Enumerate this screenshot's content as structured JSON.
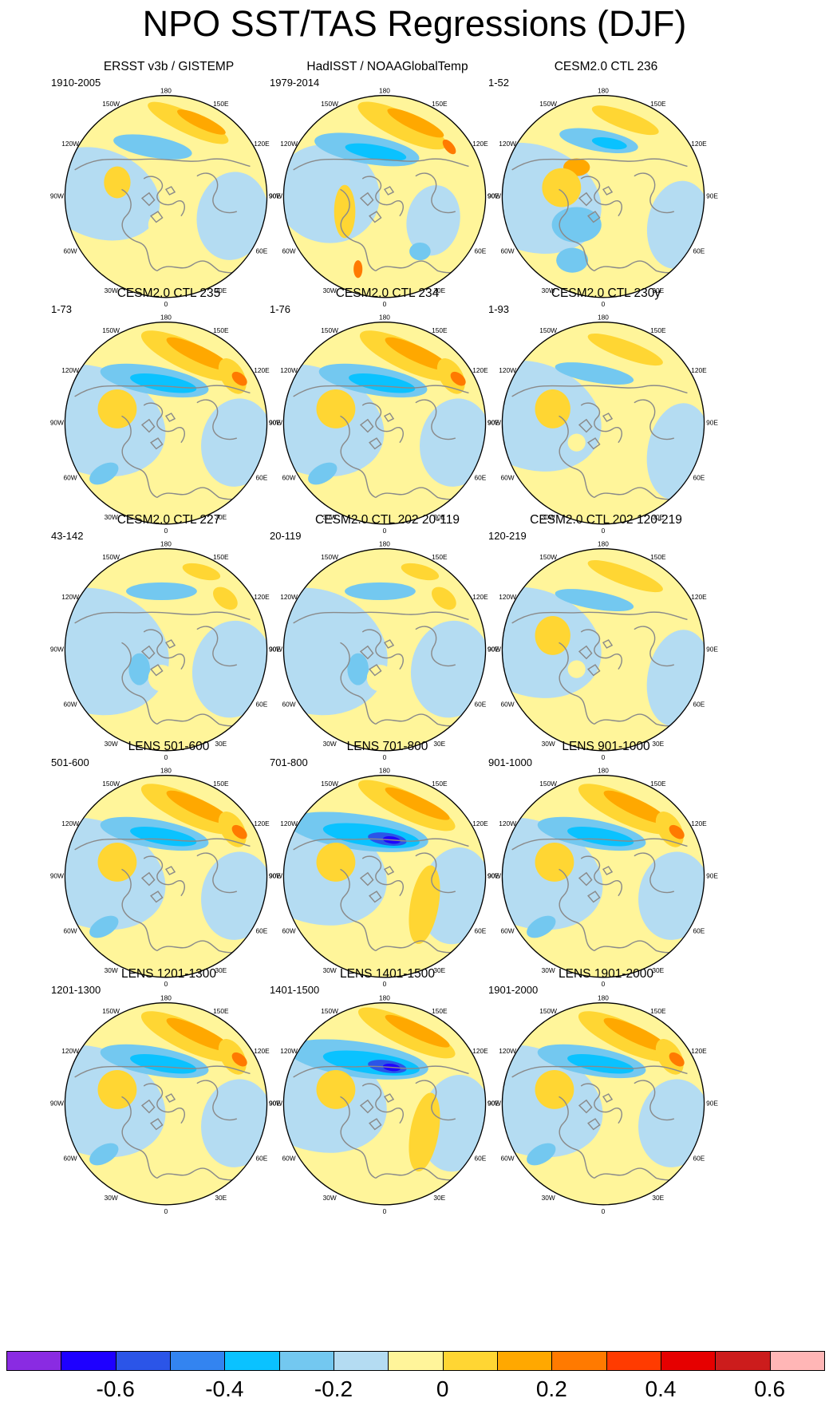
{
  "figure_title": "NPO SST/TAS Regressions (DJF)",
  "map_labels": {
    "lon_180": "180",
    "lon_150e": "150E",
    "lon_120e": "120E",
    "lon_90e": "90E",
    "lon_60e": "60E",
    "lon_30e": "30E",
    "lon_0": "0",
    "lon_30w": "30W",
    "lon_60w": "60W",
    "lon_90w": "90W",
    "lon_120w": "120W",
    "lon_150w": "150W"
  },
  "panels": [
    {
      "title": "ERSST v3b / GISTEMP",
      "years": "1910-2005",
      "pattern": "obs1"
    },
    {
      "title": "HadISST / NOAAGlobalTemp",
      "years": "1979-2014",
      "pattern": "obs2"
    },
    {
      "title": "CESM2.0 CTL 236",
      "years": "1-52",
      "pattern": "ctl"
    },
    {
      "title": "CESM2.0 CTL 235",
      "years": "1-73",
      "pattern": "strong"
    },
    {
      "title": "CESM2.0 CTL 234",
      "years": "1-76",
      "pattern": "strong"
    },
    {
      "title": "CESM2.0 CTL 230y",
      "years": "1-93",
      "pattern": "mild"
    },
    {
      "title": "CESM2.0 CTL 227",
      "years": "43-142",
      "pattern": "weak"
    },
    {
      "title": "CESM2.0 CTL 202 20-119",
      "years": "20-119",
      "pattern": "weak"
    },
    {
      "title": "CESM2.0 CTL 202 120-219",
      "years": "120-219",
      "pattern": "mild"
    },
    {
      "title": "LENS 501-600",
      "years": "501-600",
      "pattern": "strong"
    },
    {
      "title": "LENS 701-800",
      "years": "701-800",
      "pattern": "lens"
    },
    {
      "title": "LENS 901-1000",
      "years": "901-1000",
      "pattern": "strong"
    },
    {
      "title": "LENS 1201-1300",
      "years": "1201-1300",
      "pattern": "strong"
    },
    {
      "title": "LENS 1401-1500",
      "years": "1401-1500",
      "pattern": "lens"
    },
    {
      "title": "LENS 1901-2000",
      "years": "1901-2000",
      "pattern": "strong"
    }
  ],
  "colorbar": {
    "colors": [
      "#8a2be2",
      "#1e00ff",
      "#2b55e8",
      "#3384f0",
      "#0ac2ff",
      "#73c8f0",
      "#b4dcf2",
      "#fff59a",
      "#ffd633",
      "#ffa800",
      "#ff7a00",
      "#ff3b00",
      "#e60000",
      "#cc1c1c",
      "#ffb6b6"
    ],
    "tick_labels": [
      "-0.6",
      "-0.4",
      "-0.2",
      "0",
      "0.2",
      "0.4",
      "0.6"
    ]
  }
}
